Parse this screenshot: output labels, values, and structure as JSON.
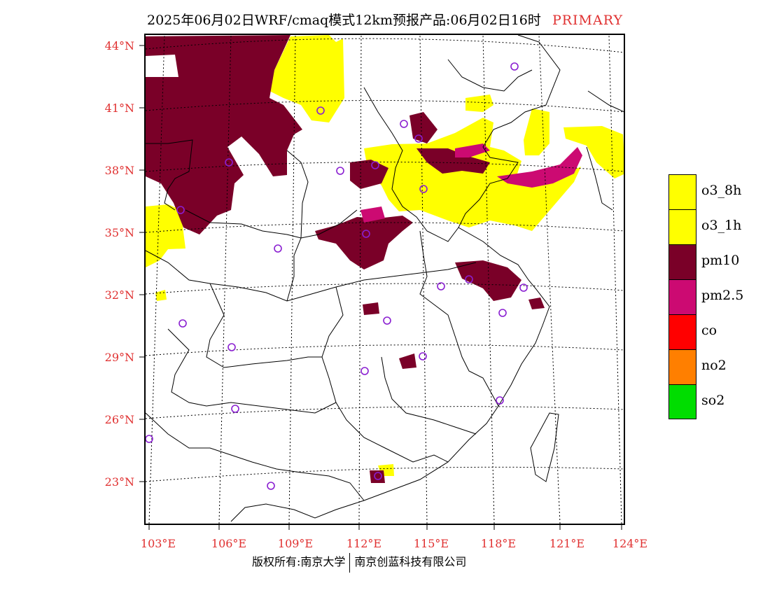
{
  "title": {
    "main": "2025年06月02日WRF/cmaq模式12km预报产品:06月02日16时",
    "tag": "PRIMARY"
  },
  "axes": {
    "lat_labels": [
      "44°N",
      "41°N",
      "38°N",
      "35°N",
      "32°N",
      "29°N",
      "26°N",
      "23°N"
    ],
    "lon_labels": [
      "103°E",
      "106°E",
      "109°E",
      "112°E",
      "115°E",
      "118°E",
      "121°E",
      "124°E"
    ],
    "label_color": "#e03030"
  },
  "legend": [
    {
      "label": "o3_8h",
      "color": "#ffff00"
    },
    {
      "label": "o3_1h",
      "color": "#ffff00"
    },
    {
      "label": "pm10",
      "color": "#7a0028"
    },
    {
      "label": "pm2.5",
      "color": "#cc0a72"
    },
    {
      "label": "co",
      "color": "#ff0000"
    },
    {
      "label": "no2",
      "color": "#ff7f00"
    },
    {
      "label": "so2",
      "color": "#00dd00"
    }
  ],
  "footer": {
    "left": "版权所有:南京大学",
    "right": "南京创蓝科技有限公司"
  }
}
